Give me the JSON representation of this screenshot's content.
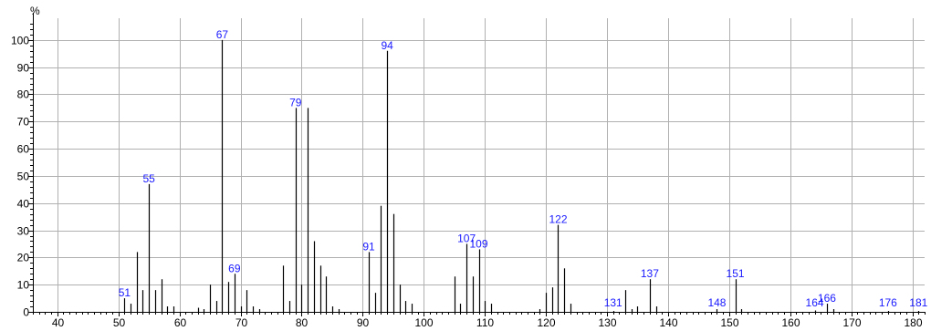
{
  "chart_data": {
    "type": "bar",
    "title": "",
    "xlabel": "",
    "ylabel": "%",
    "xlim": [
      36,
      182
    ],
    "ylim": [
      0,
      108
    ],
    "grid": true,
    "x_ticks": [
      40,
      50,
      60,
      70,
      80,
      90,
      100,
      110,
      120,
      130,
      140,
      150,
      160,
      170,
      180
    ],
    "y_ticks": [
      0,
      10,
      20,
      30,
      40,
      50,
      60,
      70,
      80,
      90,
      100
    ],
    "x": [
      51,
      52,
      53,
      54,
      55,
      56,
      57,
      58,
      59,
      63,
      64,
      65,
      66,
      67,
      68,
      69,
      70,
      71,
      72,
      73,
      77,
      78,
      79,
      80,
      81,
      82,
      83,
      84,
      85,
      86,
      91,
      92,
      93,
      94,
      95,
      96,
      97,
      98,
      105,
      106,
      107,
      108,
      109,
      110,
      111,
      119,
      120,
      121,
      122,
      123,
      124,
      131,
      133,
      134,
      135,
      137,
      138,
      148,
      151,
      152,
      164,
      166,
      167,
      176,
      181
    ],
    "values": [
      5,
      3,
      22,
      8,
      47,
      8,
      12,
      2,
      2,
      1.5,
      1,
      10,
      4,
      100,
      11,
      14,
      2,
      8,
      2,
      1,
      17,
      4,
      75,
      10,
      75,
      26,
      17,
      13,
      2,
      1,
      22,
      7,
      39,
      96,
      36,
      10,
      4,
      3,
      13,
      3,
      25,
      13,
      23,
      4,
      3,
      1,
      7,
      9,
      32,
      16,
      3,
      0.3,
      8,
      1,
      2,
      12,
      2,
      1,
      12,
      1,
      0.5,
      3,
      1,
      0.3,
      0.3
    ],
    "peak_labels": [
      {
        "x": 51,
        "text": "51"
      },
      {
        "x": 55,
        "text": "55"
      },
      {
        "x": 67,
        "text": "67"
      },
      {
        "x": 69,
        "text": "69"
      },
      {
        "x": 79,
        "text": "79"
      },
      {
        "x": 91,
        "text": "91"
      },
      {
        "x": 94,
        "text": "94"
      },
      {
        "x": 107,
        "text": "107"
      },
      {
        "x": 109,
        "text": "109"
      },
      {
        "x": 122,
        "text": "122"
      },
      {
        "x": 131,
        "text": "131"
      },
      {
        "x": 137,
        "text": "137"
      },
      {
        "x": 148,
        "text": "148"
      },
      {
        "x": 151,
        "text": "151"
      },
      {
        "x": 164,
        "text": "164"
      },
      {
        "x": 166,
        "text": "166"
      },
      {
        "x": 176,
        "text": "176"
      },
      {
        "x": 181,
        "text": "181"
      }
    ]
  },
  "colors": {
    "bar": "#000000",
    "grid": "#b0b0b0",
    "peak_label": "#1a1aff",
    "axis": "#000000"
  }
}
